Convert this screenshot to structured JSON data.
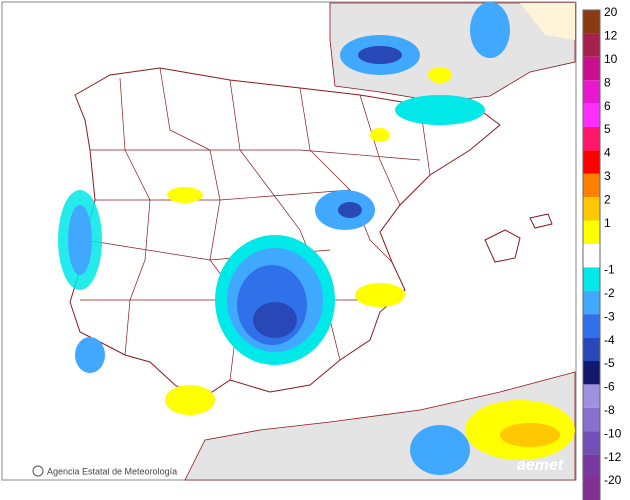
{
  "legend": {
    "items": [
      {
        "label": "20",
        "color": "#8b3a12"
      },
      {
        "label": "12",
        "color": "#a8204c"
      },
      {
        "label": "10",
        "color": "#c8108c"
      },
      {
        "label": "8",
        "color": "#e818d0"
      },
      {
        "label": "6",
        "color": "#ff30ff"
      },
      {
        "label": "5",
        "color": "#ff1868"
      },
      {
        "label": "4",
        "color": "#ff0000"
      },
      {
        "label": "3",
        "color": "#ff8000"
      },
      {
        "label": "2",
        "color": "#ffc800"
      },
      {
        "label": "1",
        "color": "#ffff00"
      },
      {
        "label": "-1",
        "color": "#00e8e8"
      },
      {
        "label": "-2",
        "color": "#40a8ff"
      },
      {
        "label": "-3",
        "color": "#3070e8"
      },
      {
        "label": "-4",
        "color": "#2848b8"
      },
      {
        "label": "-5",
        "color": "#101870"
      },
      {
        "label": "-6",
        "color": "#a090e0"
      },
      {
        "label": "-8",
        "color": "#8870d0"
      },
      {
        "label": "-10",
        "color": "#7050b8"
      },
      {
        "label": "-12",
        "color": "#7838a0"
      },
      {
        "label": "-20",
        "color": "#803090"
      }
    ]
  },
  "credit": "Agencia Estatal de Meteorología",
  "logo": "aemet"
}
